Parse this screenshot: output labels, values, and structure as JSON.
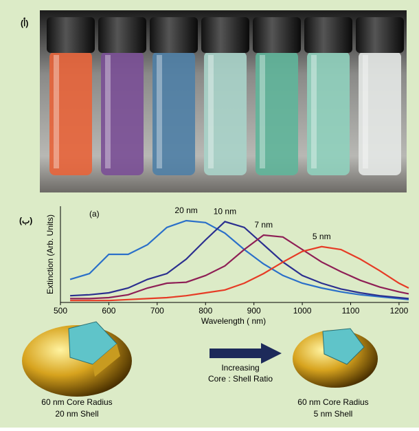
{
  "chart_data": {
    "type": "line",
    "panel_a_label": "(أ)",
    "panel_b_label": "(ب)",
    "annotation": "(a)",
    "xlabel": "Wavelength (      nm)",
    "ylabel": "Extinction (Arb. Units)",
    "xlim": [
      500,
      1220
    ],
    "ylim": [
      0,
      1
    ],
    "xticks": [
      500,
      600,
      700,
      800,
      900,
      1000,
      1100,
      1200
    ],
    "x": [
      520,
      560,
      600,
      640,
      680,
      720,
      760,
      800,
      840,
      880,
      920,
      960,
      1000,
      1040,
      1080,
      1120,
      1160,
      1200,
      1220
    ],
    "series": [
      {
        "name": "20 nm",
        "color": "#2a6fc9",
        "values": [
          0.24,
          0.3,
          0.5,
          0.5,
          0.6,
          0.78,
          0.85,
          0.83,
          0.72,
          0.55,
          0.4,
          0.28,
          0.2,
          0.15,
          0.11,
          0.08,
          0.06,
          0.04,
          0.03
        ]
      },
      {
        "name": "10 nm",
        "color": "#2b2f8f",
        "values": [
          0.07,
          0.08,
          0.1,
          0.15,
          0.24,
          0.3,
          0.45,
          0.65,
          0.84,
          0.78,
          0.6,
          0.42,
          0.28,
          0.2,
          0.14,
          0.1,
          0.07,
          0.05,
          0.04
        ]
      },
      {
        "name": "7 nm",
        "color": "#8e1f55",
        "values": [
          0.04,
          0.04,
          0.05,
          0.08,
          0.15,
          0.2,
          0.21,
          0.28,
          0.38,
          0.55,
          0.7,
          0.68,
          0.55,
          0.42,
          0.32,
          0.23,
          0.16,
          0.11,
          0.09
        ]
      },
      {
        "name": "5 nm",
        "color": "#e63b25",
        "values": [
          0.02,
          0.02,
          0.02,
          0.03,
          0.04,
          0.05,
          0.07,
          0.1,
          0.13,
          0.2,
          0.3,
          0.42,
          0.53,
          0.58,
          0.55,
          0.45,
          0.33,
          0.2,
          0.15
        ]
      }
    ],
    "arrow_text": [
      "Increasing",
      "Core : Shell Ratio"
    ],
    "left_caption": [
      "60 nm Core Radius",
      "20 nm Shell"
    ],
    "right_caption": [
      "60 nm Core Radius",
      "5 nm Shell"
    ]
  }
}
